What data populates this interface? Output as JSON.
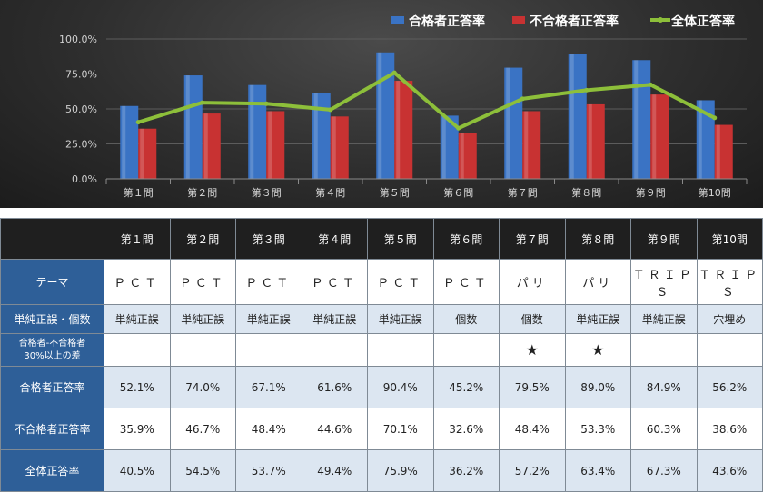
{
  "chart_data": {
    "type": "bar",
    "categories": [
      "第１問",
      "第２問",
      "第３問",
      "第４問",
      "第５問",
      "第６問",
      "第７問",
      "第８問",
      "第９問",
      "第10問"
    ],
    "series": [
      {
        "name": "合格者正答率",
        "kind": "bar",
        "color": "#3a73c4",
        "values": [
          52.1,
          74.0,
          67.1,
          61.6,
          90.4,
          45.2,
          79.5,
          89.0,
          84.9,
          56.2
        ]
      },
      {
        "name": "不合格者正答率",
        "kind": "bar",
        "color": "#c83232",
        "values": [
          35.9,
          46.7,
          48.4,
          44.6,
          70.1,
          32.6,
          48.4,
          53.3,
          60.3,
          38.6
        ]
      },
      {
        "name": "全体正答率",
        "kind": "line",
        "color": "#8dbf3a",
        "values": [
          40.5,
          54.5,
          53.7,
          49.4,
          75.9,
          36.2,
          57.2,
          63.4,
          67.3,
          43.6
        ]
      }
    ],
    "yticks": [
      "0.0%",
      "25.0%",
      "50.0%",
      "75.0%",
      "100.0%"
    ],
    "ylim": [
      0,
      100
    ],
    "grid": true,
    "legend_position": "top-right"
  },
  "table": {
    "columns": [
      "第１問",
      "第２問",
      "第３問",
      "第４問",
      "第５問",
      "第６問",
      "第７問",
      "第８問",
      "第９問",
      "第10問"
    ],
    "rows": [
      {
        "key": "theme",
        "label": "テーマ",
        "cells": [
          "ＰＣＴ",
          "ＰＣＴ",
          "ＰＣＴ",
          "ＰＣＴ",
          "ＰＣＴ",
          "ＰＣＴ",
          "パリ",
          "パリ",
          "ＴＲＩＰＳ",
          "ＴＲＩＰＳ"
        ]
      },
      {
        "key": "type",
        "label": "単純正誤・個数",
        "cells": [
          "単純正誤",
          "単純正誤",
          "単純正誤",
          "単純正誤",
          "単純正誤",
          "個数",
          "個数",
          "単純正誤",
          "単純正誤",
          "穴埋め"
        ]
      },
      {
        "key": "diff",
        "label_line1": "合格者-不合格者",
        "label_line2": "30%以上の差",
        "cells": [
          "",
          "",
          "",
          "",
          "",
          "",
          "★",
          "★",
          "",
          ""
        ]
      },
      {
        "key": "pass",
        "label": "合格者正答率",
        "cells": [
          "52.1%",
          "74.0%",
          "67.1%",
          "61.6%",
          "90.4%",
          "45.2%",
          "79.5%",
          "89.0%",
          "84.9%",
          "56.2%"
        ]
      },
      {
        "key": "fail",
        "label": "不合格者正答率",
        "cells": [
          "35.9%",
          "46.7%",
          "48.4%",
          "44.6%",
          "70.1%",
          "32.6%",
          "48.4%",
          "53.3%",
          "60.3%",
          "38.6%"
        ]
      },
      {
        "key": "all",
        "label": "全体正答率",
        "cells": [
          "40.5%",
          "54.5%",
          "53.7%",
          "49.4%",
          "75.9%",
          "36.2%",
          "57.2%",
          "63.4%",
          "67.3%",
          "43.6%"
        ]
      }
    ]
  }
}
